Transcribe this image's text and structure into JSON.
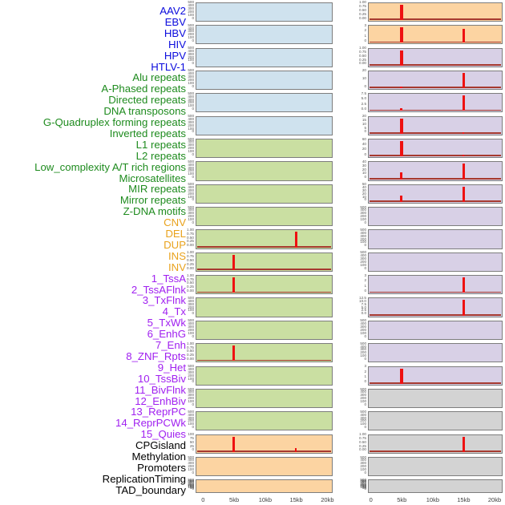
{
  "palette": {
    "label_colors": {
      "virus": "#0b0bdd",
      "repeat": "#1e8b1e",
      "sv": "#e9a21c",
      "state": "#a020f0",
      "other": "#000000"
    },
    "panel_bg": {
      "blue": "#cfe2ee",
      "green": "#cadfa2",
      "orange": "#fcd4a2",
      "purple": "#d8d0e6",
      "gray": "#d3d3d3"
    },
    "panel_border": "#7d7d7d",
    "spike_color": "#ee1111",
    "baseline_color": "#a6392f",
    "ytick_color": "#555555",
    "xtick_color": "#3c3c3c"
  },
  "chart_data": {
    "type": "bar",
    "title": "",
    "x_unit": "kb",
    "x_range_kb": [
      0,
      20
    ],
    "x_ticks": [
      "0",
      "5kb",
      "10kb",
      "15kb",
      "20kb"
    ],
    "x_tick_values": [
      0,
      5,
      10,
      15,
      20
    ],
    "spike_positions_kb": [
      5,
      15
    ],
    "tick_sets": {
      "count": [
        "500",
        "400",
        "300",
        "200",
        "100",
        "0"
      ],
      "frac": [
        "1.00",
        "0.75",
        "0.50",
        "0.25",
        "0.00"
      ],
      "cnv": [
        "100",
        "75",
        "50",
        "25",
        "0"
      ],
      "three": [
        "3",
        "2",
        "1",
        "0"
      ],
      "twenty": [
        "20",
        "10",
        "0"
      ],
      "txflnk": [
        "7.5",
        "5.0",
        "2.5",
        "0.0"
      ],
      "tx": [
        "20",
        "15",
        "10",
        "5",
        "0"
      ],
      "txwk": [
        "60",
        "40",
        "20",
        "0"
      ],
      "enhg": [
        "40",
        "30",
        "20",
        "10",
        "0"
      ],
      "enh": [
        "50",
        "40",
        "30",
        "20",
        "10",
        "0"
      ],
      "enhbiv": [
        "12.5",
        "10.0",
        "7.5",
        "5.0",
        "2.5",
        "0.0"
      ],
      "dense": [
        "500",
        "450",
        "400",
        "350",
        "300",
        "250",
        "200",
        "150",
        "100",
        "50",
        "0"
      ]
    },
    "tracks": [
      {
        "label": "AAV2",
        "group": "virus",
        "col": "left",
        "bg": "blue",
        "yticks": "count",
        "bars": []
      },
      {
        "label": "EBV",
        "group": "virus",
        "col": "left",
        "bg": "blue",
        "yticks": "count",
        "bars": []
      },
      {
        "label": "HBV",
        "group": "virus",
        "col": "left",
        "bg": "blue",
        "yticks": "count",
        "bars": []
      },
      {
        "label": "HIV",
        "group": "virus",
        "col": "left",
        "bg": "blue",
        "yticks": "count",
        "bars": []
      },
      {
        "label": "HPV",
        "group": "virus",
        "col": "left",
        "bg": "blue",
        "yticks": "count",
        "bars": []
      },
      {
        "label": "HTLV-1",
        "group": "virus",
        "col": "left",
        "bg": "blue",
        "yticks": "count",
        "bars": []
      },
      {
        "label": "Alu repeats",
        "group": "repeat",
        "col": "left",
        "bg": "green",
        "yticks": "count",
        "bars": []
      },
      {
        "label": "A-Phased repeats",
        "group": "repeat",
        "col": "left",
        "bg": "green",
        "yticks": "count",
        "bars": []
      },
      {
        "label": "Directed repeats",
        "group": "repeat",
        "col": "left",
        "bg": "green",
        "yticks": "count",
        "bars": []
      },
      {
        "label": "DNA transposons",
        "group": "repeat",
        "col": "left",
        "bg": "green",
        "yticks": "count",
        "bars": []
      },
      {
        "label": "G-Quadruplex forming repeats",
        "group": "repeat",
        "col": "left",
        "bg": "green",
        "yticks": "frac",
        "bars": [
          {
            "x": 15,
            "v": 1.0
          }
        ]
      },
      {
        "label": "Inverted repeats",
        "group": "repeat",
        "col": "left",
        "bg": "green",
        "yticks": "frac",
        "bars": [
          {
            "x": 5,
            "v": 1.0
          }
        ]
      },
      {
        "label": "L1 repeats",
        "group": "repeat",
        "col": "left",
        "bg": "green",
        "yticks": "frac",
        "bars": [
          {
            "x": 5,
            "v": 1.0
          }
        ]
      },
      {
        "label": "L2 repeats",
        "group": "repeat",
        "col": "left",
        "bg": "green",
        "yticks": "count",
        "bars": []
      },
      {
        "label": "Low_complexity A/T rich regions",
        "group": "repeat",
        "col": "left",
        "bg": "green",
        "yticks": "count",
        "bars": []
      },
      {
        "label": "Microsatellites",
        "group": "repeat",
        "col": "left",
        "bg": "green",
        "yticks": "frac",
        "bars": [
          {
            "x": 5,
            "v": 1.0
          }
        ]
      },
      {
        "label": "MIR repeats",
        "group": "repeat",
        "col": "left",
        "bg": "green",
        "yticks": "count",
        "bars": []
      },
      {
        "label": "Mirror repeats",
        "group": "repeat",
        "col": "left",
        "bg": "green",
        "yticks": "count",
        "bars": []
      },
      {
        "label": "Z-DNA motifs",
        "group": "repeat",
        "col": "left",
        "bg": "green",
        "yticks": "count",
        "bars": []
      },
      {
        "label": "CNV",
        "group": "sv",
        "col": "left",
        "bg": "orange",
        "yticks": "cnv",
        "bars": [
          {
            "x": 5,
            "v": 100
          },
          {
            "x": 15,
            "v": 25
          }
        ]
      },
      {
        "label": "DEL",
        "group": "sv",
        "col": "left",
        "bg": "orange",
        "yticks": "count",
        "bars": []
      },
      {
        "label": "DUP",
        "group": "sv",
        "col": "left",
        "bg": "orange",
        "yticks": "dense",
        "bars": []
      },
      {
        "label": "INS",
        "group": "sv",
        "col": "right",
        "bg": "orange",
        "yticks": "frac",
        "bars": [
          {
            "x": 5,
            "v": 1.0
          }
        ]
      },
      {
        "label": "INV",
        "group": "sv",
        "col": "right",
        "bg": "orange",
        "yticks": "three",
        "bars": [
          {
            "x": 5,
            "v": 3
          },
          {
            "x": 15,
            "v": 2.7
          }
        ]
      },
      {
        "label": "1_TssA",
        "group": "state",
        "col": "right",
        "bg": "purple",
        "yticks": "frac",
        "bars": [
          {
            "x": 5,
            "v": 1.0
          }
        ]
      },
      {
        "label": "2_TssAFlnk",
        "group": "state",
        "col": "right",
        "bg": "purple",
        "yticks": "twenty",
        "bars": [
          {
            "x": 5,
            "v": 2.5
          },
          {
            "x": 15,
            "v": 20
          }
        ]
      },
      {
        "label": "3_TxFlnk",
        "group": "state",
        "col": "right",
        "bg": "purple",
        "yticks": "txflnk",
        "bars": [
          {
            "x": 5,
            "v": 1.4
          },
          {
            "x": 15,
            "v": 7.5
          }
        ]
      },
      {
        "label": "4_Tx",
        "group": "state",
        "col": "right",
        "bg": "purple",
        "yticks": "tx",
        "bars": [
          {
            "x": 5,
            "v": 20
          },
          {
            "x": 15,
            "v": 2
          }
        ]
      },
      {
        "label": "5_TxWk",
        "group": "state",
        "col": "right",
        "bg": "purple",
        "yticks": "txwk",
        "bars": [
          {
            "x": 5,
            "v": 60
          },
          {
            "x": 15,
            "v": 6
          }
        ]
      },
      {
        "label": "6_EnhG",
        "group": "state",
        "col": "right",
        "bg": "purple",
        "yticks": "enhg",
        "bars": [
          {
            "x": 5,
            "v": 18
          },
          {
            "x": 15,
            "v": 40
          }
        ]
      },
      {
        "label": "7_Enh",
        "group": "state",
        "col": "right",
        "bg": "purple",
        "yticks": "enh",
        "bars": [
          {
            "x": 5,
            "v": 20
          },
          {
            "x": 15,
            "v": 50
          }
        ]
      },
      {
        "label": "8_ZNF_Rpts",
        "group": "state",
        "col": "right",
        "bg": "purple",
        "yticks": "count",
        "bars": []
      },
      {
        "label": "9_Het",
        "group": "state",
        "col": "right",
        "bg": "purple",
        "yticks": "count",
        "bars": []
      },
      {
        "label": "10_TssBiv",
        "group": "state",
        "col": "right",
        "bg": "purple",
        "yticks": "count",
        "bars": []
      },
      {
        "label": "11_BivFlnk",
        "group": "state",
        "col": "right",
        "bg": "purple",
        "yticks": "three",
        "bars": [
          {
            "x": 15,
            "v": 3
          }
        ]
      },
      {
        "label": "12_EnhBiv",
        "group": "state",
        "col": "right",
        "bg": "purple",
        "yticks": "enhbiv",
        "bars": [
          {
            "x": 15,
            "v": 12.5
          }
        ]
      },
      {
        "label": "13_ReprPC",
        "group": "state",
        "col": "right",
        "bg": "purple",
        "yticks": "count",
        "bars": []
      },
      {
        "label": "14_ReprPCWk",
        "group": "state",
        "col": "right",
        "bg": "purple",
        "yticks": "count",
        "bars": []
      },
      {
        "label": "15_Quies",
        "group": "state",
        "col": "right",
        "bg": "purple",
        "yticks": "three",
        "bars": [
          {
            "x": 5,
            "v": 3
          }
        ]
      },
      {
        "label": "CPGisland",
        "group": "other",
        "col": "right",
        "bg": "gray",
        "yticks": "count",
        "bars": []
      },
      {
        "label": "Methylation",
        "group": "other",
        "col": "right",
        "bg": "gray",
        "yticks": "count",
        "bars": []
      },
      {
        "label": "Promoters",
        "group": "other",
        "col": "right",
        "bg": "gray",
        "yticks": "frac",
        "bars": [
          {
            "x": 15,
            "v": 1.0
          }
        ]
      },
      {
        "label": "ReplicationTiming",
        "group": "other",
        "col": "right",
        "bg": "gray",
        "yticks": "count",
        "bars": []
      },
      {
        "label": "TAD_boundary",
        "group": "other",
        "col": "right",
        "bg": "gray",
        "yticks": "dense",
        "bars": []
      }
    ]
  }
}
